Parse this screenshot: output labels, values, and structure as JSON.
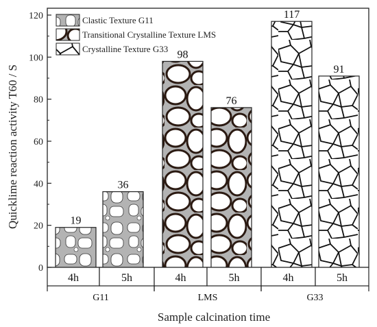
{
  "chart_data": {
    "type": "bar",
    "title": "",
    "ylabel": "Quicklime reaction activity T60 / S",
    "xlabel": "Sample calcination time",
    "ylim": [
      0,
      120
    ],
    "yticks": [
      "0",
      "20",
      "40",
      "60",
      "80",
      "100",
      "120"
    ],
    "groups": [
      {
        "label": "G11",
        "texture": "clastic",
        "bars": [
          {
            "period": "4h",
            "value": 19
          },
          {
            "period": "5h",
            "value": 36
          }
        ]
      },
      {
        "label": "LMS",
        "texture": "transitional",
        "bars": [
          {
            "period": "4h",
            "value": 98
          },
          {
            "period": "5h",
            "value": 76
          }
        ]
      },
      {
        "label": "G33",
        "texture": "crystalline",
        "bars": [
          {
            "period": "4h",
            "value": 117
          },
          {
            "period": "5h",
            "value": 91
          }
        ]
      }
    ],
    "legend": [
      {
        "key": "clastic",
        "label": "Clastic Texture G11"
      },
      {
        "key": "transitional",
        "label": "Transitional Crystalline Texture LMS"
      },
      {
        "key": "crystalline",
        "label": "Crystalline Texture G33"
      }
    ],
    "legend_position": "top-left",
    "grid": false
  },
  "colors": {
    "axis": "#222222",
    "grain_fill": "#b3b3b3",
    "transitional_border": "#2b1a12",
    "crystal_line": "#111111"
  }
}
